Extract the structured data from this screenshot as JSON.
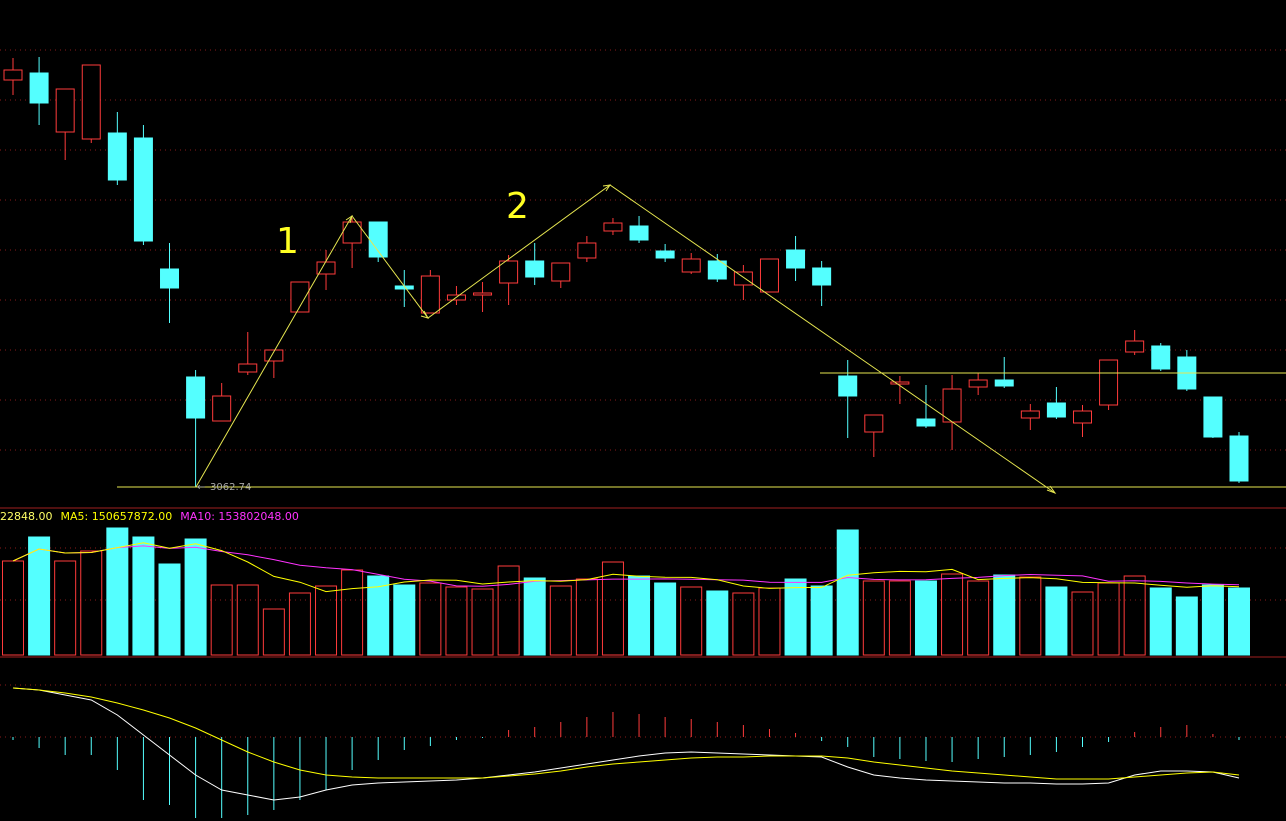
{
  "chart_data": {
    "type": "candlestick",
    "ylim": [
      3049.74,
      3549.74
    ],
    "up_color": "#ff3b3b",
    "down_color": "#54ffff",
    "open": [
      3469.74,
      3476.74,
      3417.74,
      3410.74,
      3416.74,
      3411.74,
      3280.74,
      3172.74,
      3128.74,
      3177.74,
      3188.74,
      3237.74,
      3275.74,
      3306.74,
      3327.74,
      3263.74,
      3236.74,
      3249.74,
      3254.74,
      3266.74,
      3288.74,
      3268.74,
      3291.74,
      3318.74,
      3323.74,
      3298.74,
      3277.74,
      3288.74,
      3264.74,
      3257.74,
      3299.74,
      3281.74,
      3173.74,
      3117.74,
      3165.74,
      3130.74,
      3127.74,
      3162.74,
      3169.74,
      3131.74,
      3146.74,
      3126.74,
      3144.74,
      3197.74,
      3203.74,
      3192.74,
      3152.74,
      3113.74
    ],
    "high": [
      3491.74,
      3492.74,
      3460.74,
      3484.74,
      3437.74,
      3424.74,
      3306.74,
      3179.74,
      3166.74,
      3217.74,
      3199.74,
      3267.74,
      3299.74,
      3331.74,
      3327.74,
      3279.74,
      3279.74,
      3263.74,
      3267.74,
      3294.74,
      3306.74,
      3286.74,
      3313.74,
      3331.74,
      3333.74,
      3305.74,
      3296.74,
      3295.74,
      3284.74,
      3290.74,
      3313.74,
      3288.74,
      3189.74,
      3134.74,
      3173.74,
      3164.74,
      3174.74,
      3176.74,
      3192.74,
      3145.74,
      3162.74,
      3144.74,
      3189.74,
      3219.74,
      3206.74,
      3199.74,
      3152.74,
      3117.74
    ],
    "low": [
      3454.74,
      3424.74,
      3389.74,
      3406.74,
      3364.74,
      3304.74,
      3226.74,
      3062.74,
      3128.74,
      3174.74,
      3171.74,
      3237.74,
      3259.74,
      3281.74,
      3287.74,
      3242.74,
      3236.74,
      3244.74,
      3237.74,
      3244.74,
      3264.74,
      3261.74,
      3287.74,
      3314.74,
      3306.74,
      3287.74,
      3275.74,
      3267.74,
      3249.74,
      3257.74,
      3268.74,
      3243.74,
      3111.74,
      3092.74,
      3145.74,
      3121.74,
      3099.74,
      3154.74,
      3161.74,
      3119.74,
      3130.74,
      3112.74,
      3139.74,
      3194.74,
      3178.74,
      3158.74,
      3111.74,
      3066.74
    ],
    "close": [
      3479.74,
      3446.74,
      3460.74,
      3484.74,
      3369.74,
      3308.74,
      3261.74,
      3131.74,
      3153.74,
      3185.74,
      3199.74,
      3267.74,
      3287.74,
      3327.74,
      3292.74,
      3260.74,
      3273.74,
      3254.74,
      3256.74,
      3288.74,
      3272.74,
      3286.74,
      3306.74,
      3326.74,
      3309.74,
      3291.74,
      3290.74,
      3270.74,
      3277.74,
      3290.74,
      3281.74,
      3264.74,
      3153.74,
      3134.74,
      3167.74,
      3123.74,
      3160.74,
      3169.74,
      3163.74,
      3138.74,
      3132.74,
      3138.74,
      3189.74,
      3208.74,
      3180.74,
      3160.74,
      3112.74,
      3068.74
    ],
    "annotations": [
      {
        "text": "1"
      },
      {
        "text": "2"
      },
      {
        "text": "3062.74"
      }
    ],
    "volume": {
      "ylim": [
        0,
        280000000
      ],
      "legend": [
        {
          "text": "22848.00",
          "color": "#ffff66"
        },
        {
          "text": "MA5: 150657872.00",
          "color": "#ffff00"
        },
        {
          "text": "MA10: 153802048.00",
          "color": "#ff33ff"
        }
      ],
      "values": [
        188000000,
        236000000,
        188000000,
        208000000,
        254000000,
        236000000,
        182000000,
        232000000,
        140000000,
        140000000,
        92000000,
        124000000,
        138000000,
        170000000,
        158000000,
        140000000,
        144000000,
        136000000,
        132000000,
        178000000,
        154000000,
        138000000,
        152000000,
        186000000,
        158000000,
        144000000,
        136000000,
        128000000,
        124000000,
        134000000,
        152000000,
        138000000,
        250000000,
        148000000,
        148000000,
        148000000,
        162000000,
        148000000,
        160000000,
        156000000,
        136000000,
        126000000,
        144000000,
        158000000,
        134000000,
        116000000,
        140000000,
        134000000
      ]
    },
    "macd": {
      "ylim": [
        -84,
        52
      ],
      "histogram": [
        -3,
        -11,
        -18,
        -18,
        -33,
        -63,
        -68,
        -81,
        -81,
        -78,
        -73,
        -63,
        -53,
        -33,
        -23,
        -13,
        -9,
        -3,
        -1,
        7,
        10,
        15,
        20,
        25,
        23,
        20,
        18,
        15,
        12,
        8,
        4,
        -4,
        -10,
        -20,
        -22,
        -24,
        -25,
        -22,
        -20,
        -18,
        -15,
        -10,
        -5,
        5,
        10,
        12,
        3,
        -3
      ],
      "lines": [
        {
          "color": "#ffffff",
          "values": [
            49,
            47,
            42,
            37,
            22,
            2,
            -18,
            -38,
            -53,
            -58,
            -63,
            -60,
            -53,
            -48,
            -46,
            -45,
            -44,
            -43,
            -41,
            -38,
            -35,
            -31,
            -27,
            -23,
            -19,
            -16,
            -15,
            -16,
            -17,
            -18,
            -19,
            -20,
            -30,
            -38,
            -41,
            -43,
            -44,
            -45,
            -46,
            -46,
            -47,
            -47,
            -46,
            -38,
            -34,
            -34,
            -35,
            -41
          ]
        },
        {
          "color": "#ffff00",
          "values": [
            49,
            47,
            44,
            40,
            34,
            27,
            19,
            9,
            -3,
            -15,
            -25,
            -33,
            -38,
            -40,
            -41,
            -41,
            -41,
            -41,
            -41,
            -39,
            -37,
            -34,
            -30,
            -27,
            -25,
            -23,
            -21,
            -20,
            -20,
            -19,
            -19,
            -19,
            -21,
            -25,
            -28,
            -31,
            -34,
            -36,
            -38,
            -40,
            -42,
            -42,
            -42,
            -40,
            -38,
            -36,
            -35,
            -38
          ]
        }
      ]
    }
  }
}
